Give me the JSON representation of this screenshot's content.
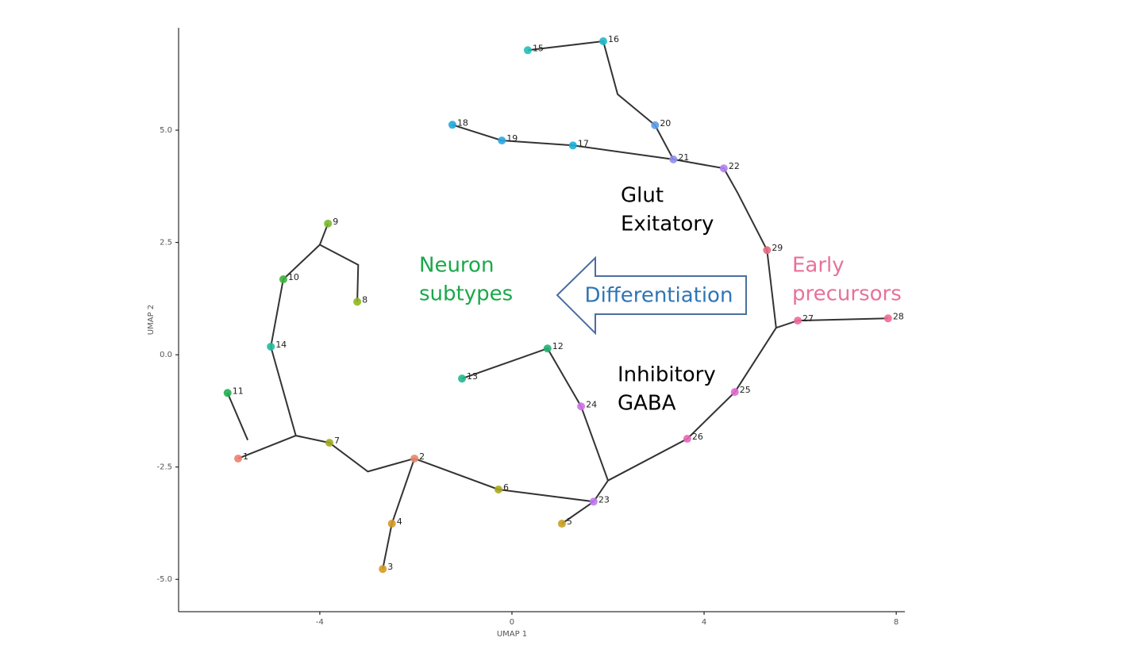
{
  "chart_data": {
    "type": "scatter",
    "x_label": "UMAP 1",
    "y_label": "UMAP 2",
    "xlim": [
      -6.94,
      8.18
    ],
    "ylim": [
      -5.72,
      7.28
    ],
    "xticks": [
      -4,
      0,
      4,
      8
    ],
    "yticks": [
      {
        "value": -5,
        "label": "-5.0"
      },
      {
        "value": -2.5,
        "label": "-2.5"
      },
      {
        "value": 0,
        "label": "0.0"
      },
      {
        "value": 2.5,
        "label": "2.5"
      },
      {
        "value": 5,
        "label": "5.0"
      }
    ],
    "grid": false,
    "series": [
      {
        "labels": [
          "1",
          "2",
          "3",
          "4",
          "5",
          "6",
          "7",
          "8",
          "9",
          "10",
          "11",
          "12",
          "13",
          "14",
          "15",
          "16",
          "17",
          "18",
          "19",
          "20",
          "21",
          "22",
          "23",
          "24",
          "25",
          "26",
          "27",
          "28",
          "29"
        ],
        "x": [
          -5.7,
          -2.03,
          -2.69,
          -2.5,
          1.04,
          -0.28,
          -3.8,
          -3.22,
          -3.83,
          -4.76,
          -5.92,
          0.74,
          -1.04,
          -5.02,
          0.33,
          1.9,
          1.27,
          -1.24,
          -0.21,
          2.98,
          3.36,
          4.41,
          1.7,
          1.44,
          4.64,
          3.65,
          5.95,
          7.83,
          5.31
        ],
        "values": [
          -2.31,
          -2.31,
          -4.77,
          -3.76,
          -3.76,
          -3.0,
          -1.96,
          1.18,
          2.92,
          1.68,
          -0.85,
          0.14,
          -0.53,
          0.18,
          6.78,
          6.98,
          4.66,
          5.12,
          4.77,
          5.11,
          4.35,
          4.15,
          -3.27,
          -1.15,
          -0.83,
          -1.87,
          0.76,
          0.81,
          2.33
        ],
        "colors": [
          "#f07f6f",
          "#e8886a",
          "#d89a20",
          "#d49a25",
          "#c8a020",
          "#a8a818",
          "#a0aa20",
          "#8db81e",
          "#7ab82a",
          "#3cb43c",
          "#20b050",
          "#20b070",
          "#20b890",
          "#20bca0",
          "#20c0b8",
          "#20b8c8",
          "#18b0d8",
          "#20a8e0",
          "#28a8e0",
          "#5a9de8",
          "#8f8ff0",
          "#b080f0",
          "#c078f0",
          "#d070e8",
          "#e068d0",
          "#e868b8",
          "#f068a0",
          "#f06890",
          "#e86880"
        ]
      }
    ],
    "trajectory": {
      "color": "#333333",
      "x": [
        7.83,
        5.95,
        5.5,
        5.31,
        4.7,
        4.41,
        3.36,
        2.98,
        2.2,
        1.9,
        0.33,
        null,
        3.36,
        1.27,
        -0.21,
        -1.24,
        null,
        5.5,
        4.64,
        3.65,
        2.0,
        1.7,
        -0.28,
        -2.03,
        -3.0,
        -3.8,
        -4.5,
        -5.7,
        null,
        -4.5,
        -5.02,
        -4.76,
        -4.0,
        -3.83,
        null,
        -4.0,
        -3.2,
        -3.22,
        null,
        -5.5,
        -5.92,
        null,
        -2.03,
        -2.5,
        -2.69,
        null,
        2.0,
        1.44,
        0.74,
        -1.04,
        null,
        1.7,
        1.04
      ],
      "y": [
        0.81,
        0.76,
        0.6,
        2.33,
        3.6,
        4.15,
        4.35,
        5.11,
        5.8,
        6.98,
        6.78,
        null,
        4.35,
        4.66,
        4.77,
        5.12,
        null,
        0.6,
        -0.83,
        -1.87,
        -2.8,
        -3.27,
        -3.0,
        -2.31,
        -2.6,
        -1.96,
        -1.8,
        -2.31,
        null,
        -1.8,
        0.18,
        1.68,
        2.45,
        2.92,
        null,
        2.45,
        2.0,
        1.18,
        null,
        -1.9,
        -0.85,
        null,
        -2.31,
        -3.76,
        -4.77,
        null,
        -2.8,
        -1.15,
        0.14,
        -0.53,
        null,
        -3.27,
        -3.76
      ]
    },
    "annotations": [
      {
        "lines": [
          "Glut",
          "Exitatory"
        ],
        "color": "#000000"
      },
      {
        "lines": [
          "Neuron",
          "subtypes"
        ],
        "color": "#1aa84a"
      },
      {
        "lines": [
          "Differentiation"
        ],
        "color": "#2f75b5"
      },
      {
        "lines": [
          "Early",
          "precursors"
        ],
        "color": "#e8719a"
      },
      {
        "lines": [
          "Inhibitory",
          "GABA"
        ],
        "color": "#000000"
      }
    ]
  }
}
